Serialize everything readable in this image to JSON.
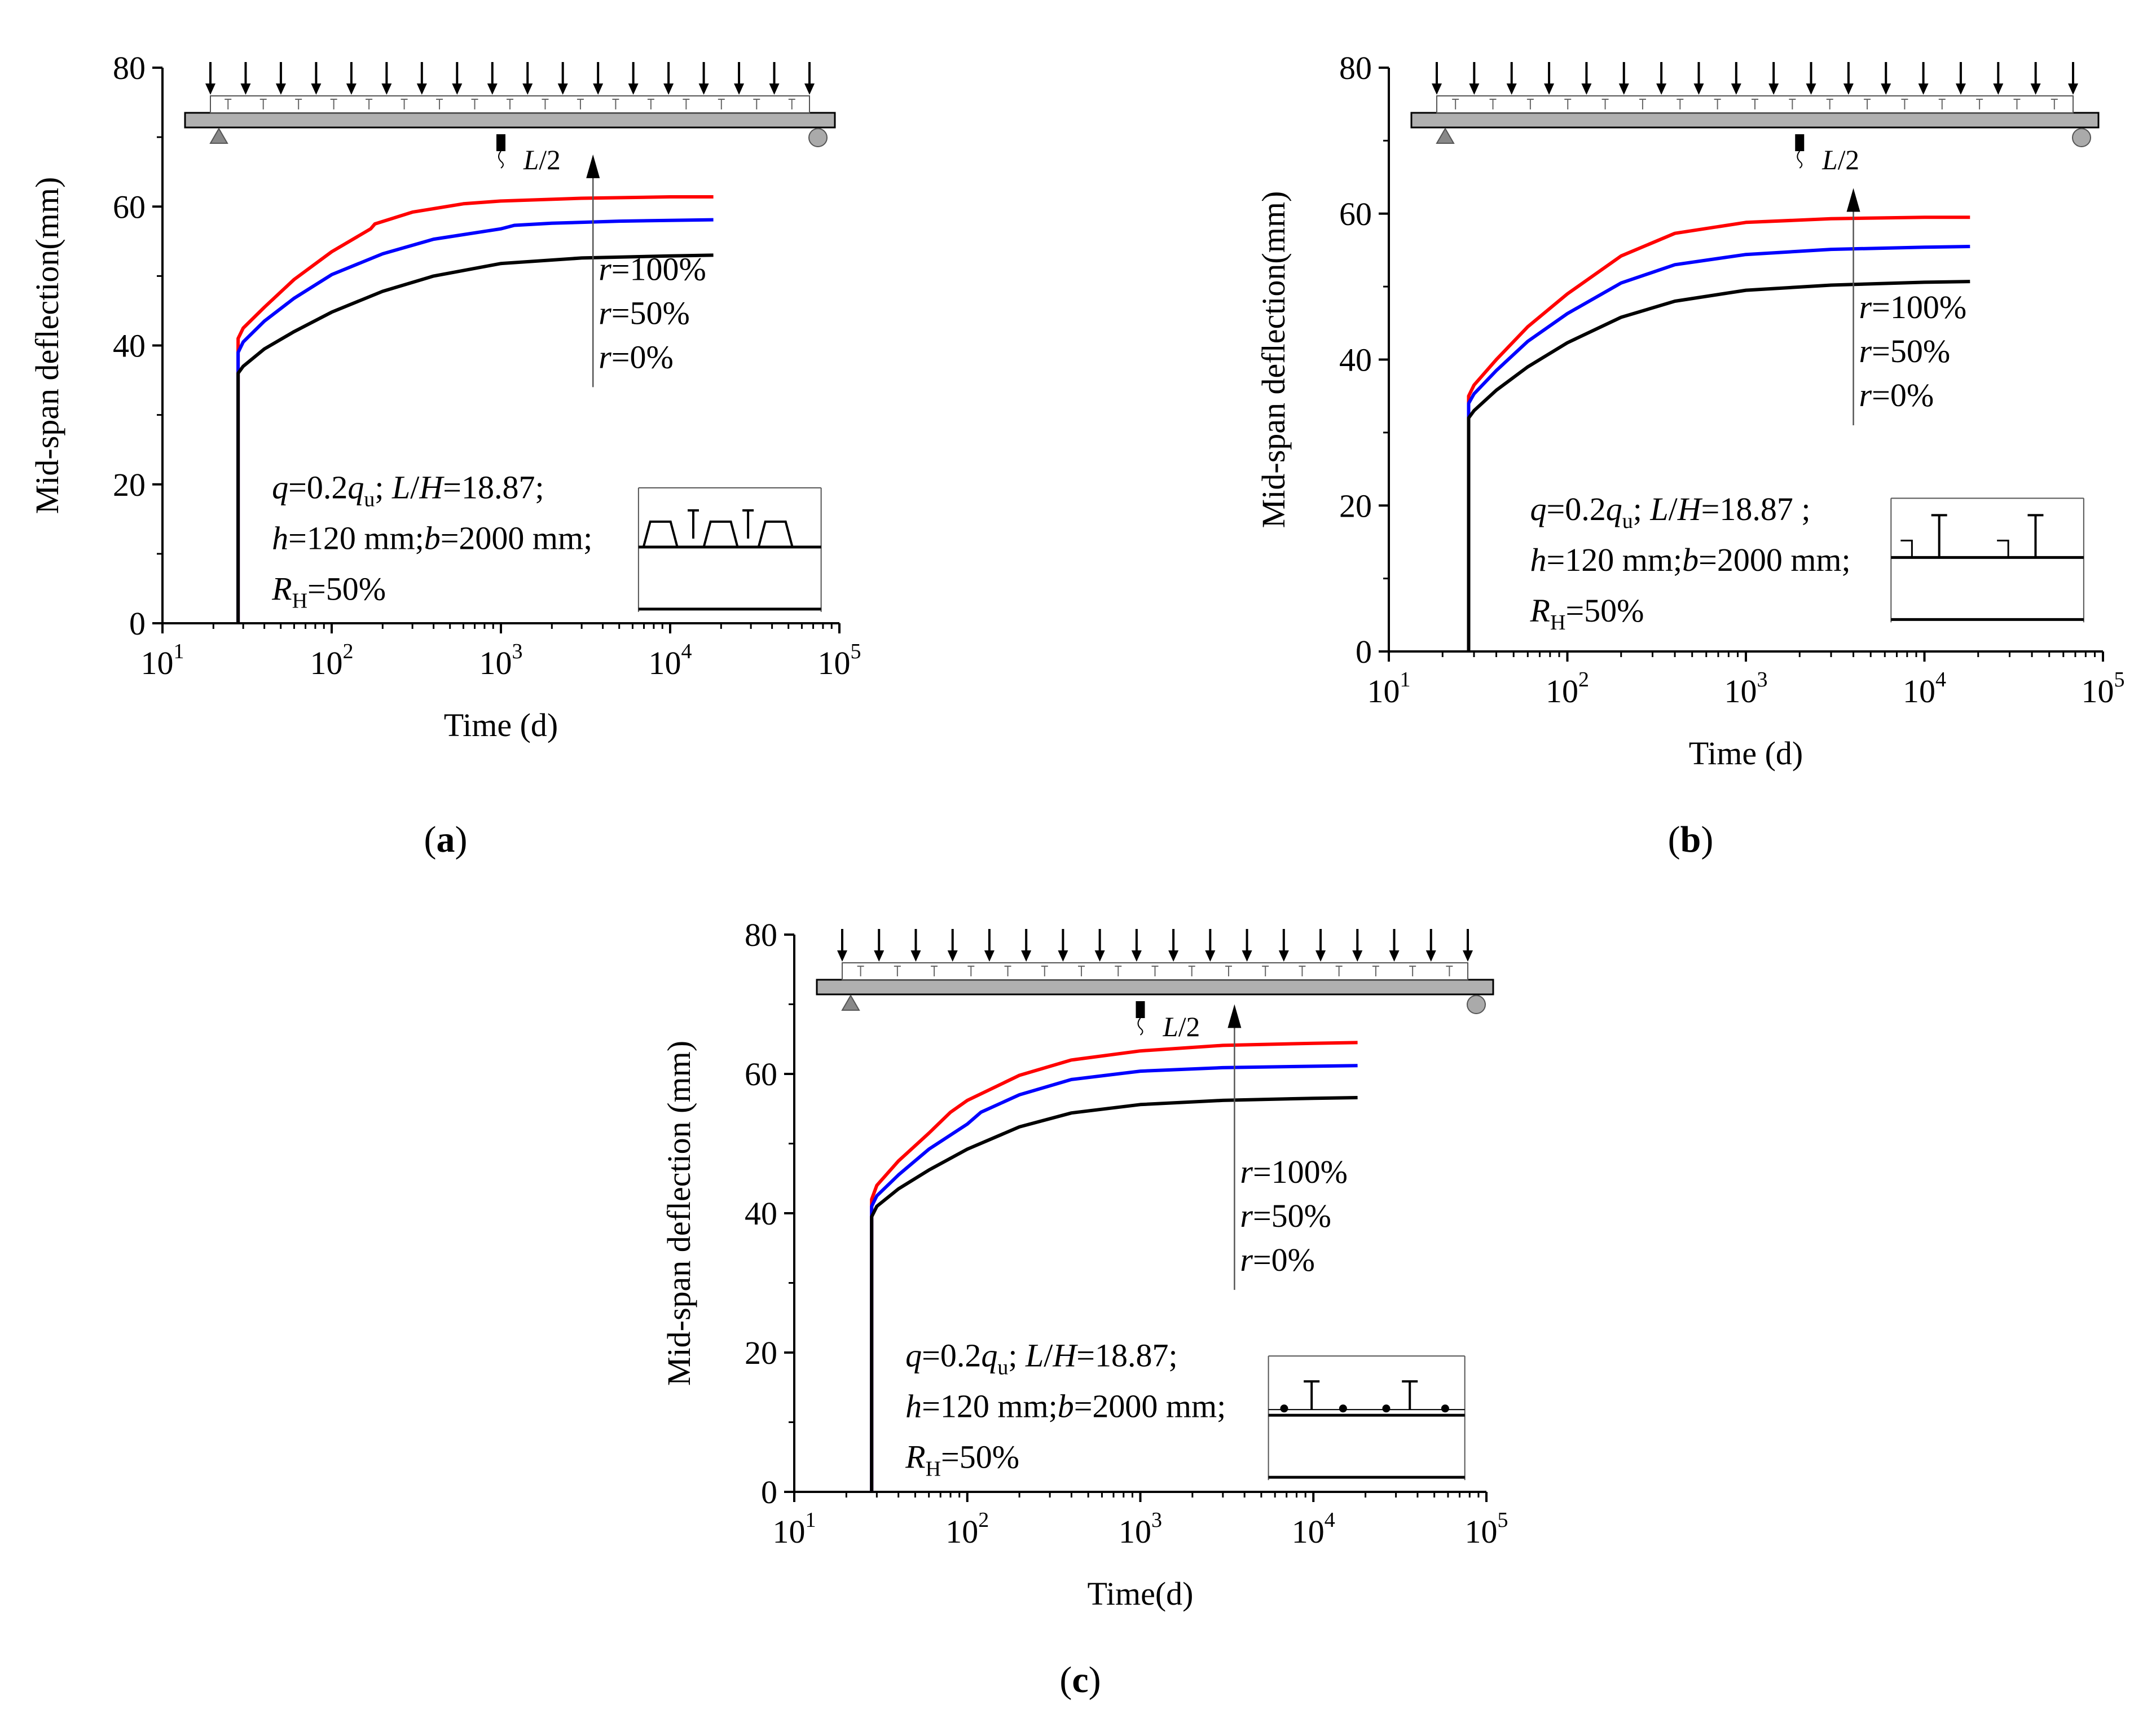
{
  "colors": {
    "r100": "#ff0000",
    "r50": "#0000ff",
    "r0": "#000000",
    "beam": "#b0b0b0"
  },
  "chart_data": [
    {
      "id": "a",
      "type": "line",
      "panel_label": "(a)",
      "label_letter": "a",
      "xlabel": "Time (d)",
      "ylabel": "Mid-span deflection(mm)",
      "xscale": "log",
      "xlim": [
        10,
        100000
      ],
      "ylim": [
        0,
        80
      ],
      "yticks": [
        "0",
        "20",
        "40",
        "60",
        "80"
      ],
      "xticks": [
        {
          "base": "10",
          "exp": "1"
        },
        {
          "base": "10",
          "exp": "2"
        },
        {
          "base": "10",
          "exp": "3"
        },
        {
          "base": "10",
          "exp": "4"
        },
        {
          "base": "10",
          "exp": "5"
        }
      ],
      "series": [
        {
          "name": "r=100%",
          "color": "#ff0000",
          "points": [
            [
              28,
              0
            ],
            [
              28,
              41
            ],
            [
              30,
              42.5
            ],
            [
              40,
              45.5
            ],
            [
              60,
              49.5
            ],
            [
              100,
              53.5
            ],
            [
              170,
              56.8
            ],
            [
              180,
              57.5
            ],
            [
              300,
              59.2
            ],
            [
              600,
              60.4
            ],
            [
              1000,
              60.8
            ],
            [
              3000,
              61.2
            ],
            [
              10000,
              61.4
            ],
            [
              18000,
              61.4
            ]
          ]
        },
        {
          "name": "r=50%",
          "color": "#0000ff",
          "points": [
            [
              28,
              0
            ],
            [
              28,
              39
            ],
            [
              30,
              40.5
            ],
            [
              40,
              43.5
            ],
            [
              60,
              46.8
            ],
            [
              100,
              50.2
            ],
            [
              200,
              53.2
            ],
            [
              400,
              55.3
            ],
            [
              1000,
              56.8
            ],
            [
              1200,
              57.3
            ],
            [
              2000,
              57.6
            ],
            [
              5000,
              57.9
            ],
            [
              18000,
              58.1
            ]
          ]
        },
        {
          "name": "r=0%",
          "color": "#000000",
          "points": [
            [
              28,
              0
            ],
            [
              28,
              36
            ],
            [
              30,
              37
            ],
            [
              40,
              39.5
            ],
            [
              60,
              42
            ],
            [
              100,
              44.8
            ],
            [
              200,
              47.8
            ],
            [
              400,
              50
            ],
            [
              1000,
              51.8
            ],
            [
              3000,
              52.6
            ],
            [
              10000,
              52.9
            ],
            [
              18000,
              53
            ]
          ]
        }
      ],
      "series_labels": [
        {
          "name": "r",
          "rest": "=100%"
        },
        {
          "name": "r",
          "rest": "=50%"
        },
        {
          "name": "r",
          "rest": "=0%"
        }
      ],
      "arrow_x": 3500,
      "arrow_from": 34,
      "arrow_to": 67.5,
      "params": [
        [
          {
            "t": "q",
            "i": true
          },
          {
            "t": "=0.2"
          },
          {
            "t": "q",
            "i": true
          },
          {
            "t": "u",
            "sub": true
          },
          {
            "t": "; "
          },
          {
            "t": "L",
            "i": true
          },
          {
            "t": "/"
          },
          {
            "t": "H",
            "i": true
          },
          {
            "t": "=18.87;"
          }
        ],
        [
          {
            "t": "h",
            "i": true
          },
          {
            "t": "=120 mm;"
          },
          {
            "t": "b",
            "i": true
          },
          {
            "t": "=2000 mm;"
          }
        ],
        [
          {
            "t": " "
          },
          {
            "t": "R",
            "i": true
          },
          {
            "t": "H",
            "sub": true
          },
          {
            "t": "=50%"
          }
        ]
      ],
      "schematic_label": {
        "name": "L",
        "rest": "/2"
      },
      "section_icon": "trapezoid-rib-deck-section-icon",
      "beam_icon": "simply-supported-beam-uniform-load-icon"
    },
    {
      "id": "b",
      "type": "line",
      "panel_label": "(b)",
      "label_letter": "b",
      "xlabel": "Time (d)",
      "ylabel": "Mid-span deflection(mm)",
      "xscale": "log",
      "xlim": [
        10,
        100000
      ],
      "ylim": [
        0,
        80
      ],
      "yticks": [
        "0",
        "20",
        "40",
        "60",
        "80"
      ],
      "xticks": [
        {
          "base": "10",
          "exp": "1"
        },
        {
          "base": "10",
          "exp": "2"
        },
        {
          "base": "10",
          "exp": "3"
        },
        {
          "base": "10",
          "exp": "4"
        },
        {
          "base": "10",
          "exp": "5"
        }
      ],
      "series": [
        {
          "name": "r=100%",
          "color": "#ff0000",
          "points": [
            [
              28,
              0
            ],
            [
              28,
              35
            ],
            [
              30,
              36.5
            ],
            [
              40,
              40
            ],
            [
              60,
              44.5
            ],
            [
              100,
              49
            ],
            [
              200,
              54.2
            ],
            [
              400,
              57.3
            ],
            [
              1000,
              58.8
            ],
            [
              3000,
              59.3
            ],
            [
              10000,
              59.5
            ],
            [
              18000,
              59.5
            ]
          ]
        },
        {
          "name": "r=50%",
          "color": "#0000ff",
          "points": [
            [
              28,
              0
            ],
            [
              28,
              34
            ],
            [
              30,
              35.3
            ],
            [
              40,
              38.5
            ],
            [
              60,
              42.5
            ],
            [
              100,
              46.3
            ],
            [
              200,
              50.5
            ],
            [
              400,
              53
            ],
            [
              1000,
              54.4
            ],
            [
              3000,
              55.1
            ],
            [
              10000,
              55.4
            ],
            [
              18000,
              55.5
            ]
          ]
        },
        {
          "name": "r=0%",
          "color": "#000000",
          "points": [
            [
              28,
              0
            ],
            [
              28,
              32
            ],
            [
              30,
              33
            ],
            [
              40,
              35.8
            ],
            [
              60,
              39
            ],
            [
              100,
              42.3
            ],
            [
              200,
              45.8
            ],
            [
              400,
              48
            ],
            [
              1000,
              49.5
            ],
            [
              3000,
              50.2
            ],
            [
              10000,
              50.6
            ],
            [
              18000,
              50.7
            ]
          ]
        }
      ],
      "series_labels": [
        {
          "name": "r",
          "rest": "=100%"
        },
        {
          "name": "r",
          "rest": "=50%"
        },
        {
          "name": "r",
          "rest": "=0%"
        }
      ],
      "arrow_x": 4000,
      "arrow_from": 31,
      "arrow_to": 63.5,
      "params": [
        [
          {
            "t": "q",
            "i": true
          },
          {
            "t": "=0.2"
          },
          {
            "t": "q",
            "i": true
          },
          {
            "t": "u",
            "sub": true
          },
          {
            "t": "; "
          },
          {
            "t": "L",
            "i": true
          },
          {
            "t": "/"
          },
          {
            "t": "H",
            "i": true
          },
          {
            "t": "=18.87 ;"
          }
        ],
        [
          {
            "t": "h",
            "i": true
          },
          {
            "t": "=120 mm;"
          },
          {
            "t": "b",
            "i": true
          },
          {
            "t": "=2000 mm;"
          }
        ],
        [
          {
            "t": " "
          },
          {
            "t": "R",
            "i": true
          },
          {
            "t": "H",
            "sub": true
          },
          {
            "t": "=50%"
          }
        ]
      ],
      "schematic_label": {
        "name": "L",
        "rest": "/2"
      },
      "section_icon": "cold-formed-channel-deck-section-icon",
      "beam_icon": "simply-supported-beam-uniform-load-icon"
    },
    {
      "id": "c",
      "type": "line",
      "panel_label": "(c)",
      "label_letter": "c",
      "xlabel": "Time(d)",
      "ylabel": "Mid-span deflection (mm)",
      "xscale": "log",
      "xlim": [
        10,
        100000
      ],
      "ylim": [
        0,
        80
      ],
      "yticks": [
        "0",
        "20",
        "40",
        "60",
        "80"
      ],
      "xticks": [
        {
          "base": "10",
          "exp": "1"
        },
        {
          "base": "10",
          "exp": "2"
        },
        {
          "base": "10",
          "exp": "3"
        },
        {
          "base": "10",
          "exp": "4"
        },
        {
          "base": "10",
          "exp": "5"
        }
      ],
      "series": [
        {
          "name": "r=100%",
          "color": "#ff0000",
          "points": [
            [
              28,
              0
            ],
            [
              28,
              42
            ],
            [
              30,
              44
            ],
            [
              40,
              47.5
            ],
            [
              60,
              51.5
            ],
            [
              80,
              54.5
            ],
            [
              100,
              56.2
            ],
            [
              200,
              59.8
            ],
            [
              400,
              62
            ],
            [
              1000,
              63.3
            ],
            [
              3000,
              64.1
            ],
            [
              10000,
              64.4
            ],
            [
              18000,
              64.5
            ]
          ]
        },
        {
          "name": "r=50%",
          "color": "#0000ff",
          "points": [
            [
              28,
              0
            ],
            [
              28,
              41
            ],
            [
              30,
              42.5
            ],
            [
              40,
              45.5
            ],
            [
              60,
              49.2
            ],
            [
              100,
              52.8
            ],
            [
              120,
              54.5
            ],
            [
              200,
              57
            ],
            [
              400,
              59.2
            ],
            [
              1000,
              60.4
            ],
            [
              3000,
              60.9
            ],
            [
              10000,
              61.1
            ],
            [
              18000,
              61.2
            ]
          ]
        },
        {
          "name": "r=0%",
          "color": "#000000",
          "points": [
            [
              28,
              0
            ],
            [
              28,
              39.5
            ],
            [
              30,
              41
            ],
            [
              40,
              43.5
            ],
            [
              60,
              46.2
            ],
            [
              100,
              49.2
            ],
            [
              200,
              52.4
            ],
            [
              400,
              54.4
            ],
            [
              1000,
              55.6
            ],
            [
              3000,
              56.2
            ],
            [
              10000,
              56.5
            ],
            [
              18000,
              56.6
            ]
          ]
        }
      ],
      "series_labels": [
        {
          "name": "r",
          "rest": "=100%"
        },
        {
          "name": "r",
          "rest": "=50%"
        },
        {
          "name": "r",
          "rest": "=0%"
        }
      ],
      "arrow_x": 3500,
      "arrow_from": 29,
      "arrow_to": 70,
      "params": [
        [
          {
            "t": "q",
            "i": true
          },
          {
            "t": "=0.2"
          },
          {
            "t": "q",
            "i": true
          },
          {
            "t": "u",
            "sub": true
          },
          {
            "t": "; "
          },
          {
            "t": "L",
            "i": true
          },
          {
            "t": "/"
          },
          {
            "t": "H",
            "i": true
          },
          {
            "t": "=18.87;"
          }
        ],
        [
          {
            "t": "h",
            "i": true
          },
          {
            "t": "=120 mm;"
          },
          {
            "t": "b",
            "i": true
          },
          {
            "t": "=2000 mm;"
          }
        ],
        [
          {
            "t": " "
          },
          {
            "t": "R",
            "i": true
          },
          {
            "t": "H",
            "sub": true
          },
          {
            "t": "=50%"
          }
        ]
      ],
      "schematic_label": {
        "name": "L",
        "rest": "/2"
      },
      "section_icon": "t-rib-rebar-deck-section-icon",
      "beam_icon": "simply-supported-beam-uniform-load-icon"
    }
  ]
}
